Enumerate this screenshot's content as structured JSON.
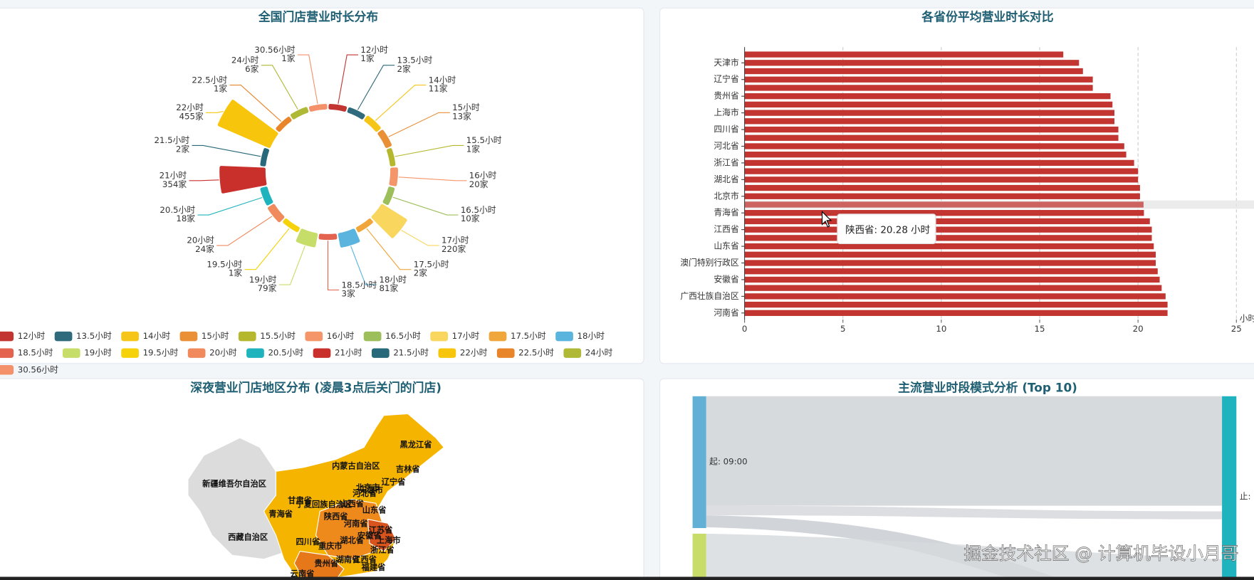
{
  "watermark": "掘金技术社区 @ 计算机毕设小月哥",
  "chart_data": [
    {
      "type": "pie",
      "rose": true,
      "title": "全国门店营业时长分布",
      "legend": "bottom",
      "categories": [
        "12小时",
        "13.5小时",
        "14小时",
        "15小时",
        "15.5小时",
        "16小时",
        "16.5小时",
        "17小时",
        "17.5小时",
        "18小时",
        "18.5小时",
        "19小时",
        "19.5小时",
        "20小时",
        "20.5小时",
        "21小时",
        "21.5小时",
        "22小时",
        "22.5小时",
        "24小时",
        "30.56小时"
      ],
      "values": [
        1,
        2,
        11,
        13,
        1,
        20,
        10,
        220,
        2,
        81,
        3,
        79,
        1,
        24,
        18,
        354,
        2,
        455,
        1,
        6,
        1
      ],
      "value_labels": [
        "1家",
        "2家",
        "11家",
        "13家",
        "1家",
        "20家",
        "10家",
        "220家",
        "2家",
        "81家",
        "3家",
        "79家",
        "1家",
        "24家",
        "18家",
        "354家",
        "2家",
        "455家",
        "1家",
        "6家",
        "1家"
      ],
      "colors": [
        "#c23531",
        "#2f6b7c",
        "#f5c518",
        "#e98f36",
        "#b5b82c",
        "#f5956a",
        "#9dbf5b",
        "#f9d65e",
        "#f0a63a",
        "#5ab4dd",
        "#e3634f",
        "#c7dd6a",
        "#f5d20a",
        "#f08a5d",
        "#1fb3bd",
        "#c9302c",
        "#27687a",
        "#f7c50c",
        "#e8852a",
        "#b0b936",
        "#f4916a"
      ]
    },
    {
      "type": "bar",
      "title": "各省份平均营业时长对比",
      "color": "#c23531",
      "categories": [
        null,
        "天津市",
        null,
        "辽宁省",
        null,
        "贵州省",
        null,
        "上海市",
        null,
        "四川省",
        null,
        "河北省",
        null,
        "浙江省",
        null,
        "湖北省",
        null,
        "北京市",
        null,
        "青海省",
        null,
        "江西省",
        null,
        "山东省",
        null,
        "澳门特别行政区",
        null,
        "安徽省",
        null,
        "广西壮族自治区",
        null,
        "河南省"
      ],
      "values": [
        16.2,
        17.0,
        17.2,
        17.7,
        17.7,
        18.6,
        18.7,
        18.8,
        18.8,
        19.0,
        19.0,
        19.3,
        19.4,
        19.8,
        20.0,
        20.0,
        20.1,
        20.1,
        20.28,
        20.3,
        20.6,
        20.7,
        20.7,
        20.8,
        20.9,
        20.9,
        21.0,
        21.1,
        21.2,
        21.4,
        21.5,
        21.5
      ],
      "xlim": [
        0,
        25
      ],
      "xticks": [
        0,
        5,
        10,
        15,
        20,
        25
      ],
      "x_label": "小时",
      "grid": true,
      "highlight_index": 18,
      "tooltip": "陕西省: 20.28 小时"
    },
    {
      "type": "map",
      "title": "深夜营业门店地区分布 (凌晨3点后关门的门店)",
      "regions": [
        "黑龙江省",
        "吉林省",
        "内蒙古自治区",
        "辽宁省",
        "新疆维吾尔自治区",
        "北京市",
        "天津市",
        "河北省",
        "甘肃省",
        "宁夏回族自治区",
        "山西省",
        "山东省",
        "青海省",
        "陕西省",
        "河南省",
        "江苏省",
        "西藏自治区",
        "四川省",
        "湖北省",
        "安徽省",
        "上海市",
        "重庆市",
        "浙江省",
        "贵州省",
        "湖南省",
        "江西省",
        "福建省",
        "云南省"
      ]
    },
    {
      "type": "sankey",
      "title": "主流营业时段模式分析 (Top 10)",
      "nodes": [
        {
          "label": "起: 09:00",
          "color": "#62b0d5"
        },
        {
          "label": "止:",
          "color": "#1fb3bd"
        }
      ]
    }
  ]
}
